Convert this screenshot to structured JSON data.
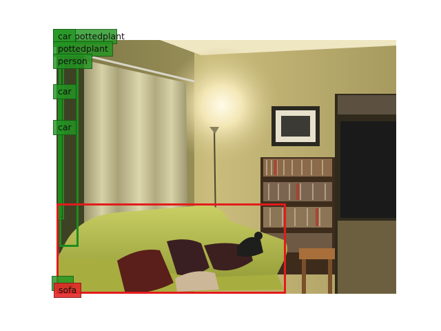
{
  "colors": {
    "green_box": "#1e8c1e",
    "red_box": "#e21b1b",
    "wall": "#c9bb7a",
    "sofa": "#b6c04e"
  },
  "detections": [
    {
      "label": "pottedplant",
      "color": "green"
    },
    {
      "label": "car",
      "color": "green"
    },
    {
      "label": "pottedplant",
      "color": "green"
    },
    {
      "label": "person",
      "color": "green"
    },
    {
      "label": "car",
      "color": "green"
    },
    {
      "label": "car",
      "color": "green"
    },
    {
      "label": "sofa",
      "color": "green"
    },
    {
      "label": "sofa",
      "color": "red"
    }
  ],
  "photo": {
    "description_icons": [
      "curtain",
      "floor-lamp",
      "framed-picture",
      "bookshelf",
      "sofa",
      "pillows",
      "cat",
      "side-table",
      "tv-cabinet"
    ]
  }
}
